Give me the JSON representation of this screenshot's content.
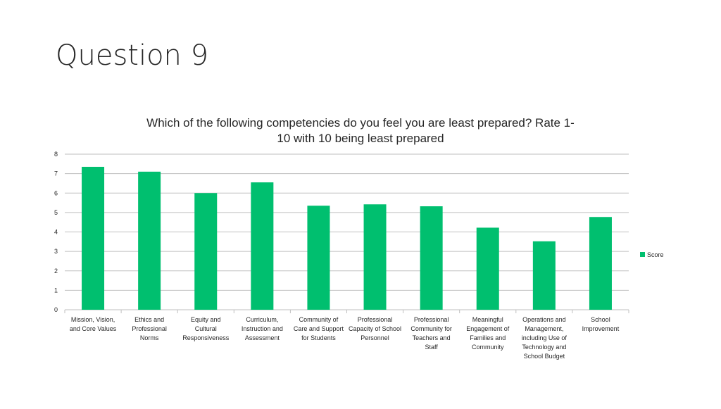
{
  "slide": {
    "title": "Question 9"
  },
  "colors": {
    "bar": "#00BF6F",
    "grid": "#BFBFBF",
    "axis_text": "#262626"
  },
  "chart_data": {
    "type": "bar",
    "title_lines": [
      "Which of the following competencies do you feel you are least prepared?  Rate 1-",
      "10 with 10 being least prepared"
    ],
    "categories": [
      [
        "Mission, Vision,",
        "and Core Values"
      ],
      [
        "Ethics and",
        "Professional",
        "Norms"
      ],
      [
        "Equity and",
        "Cultural",
        "Responsiveness"
      ],
      [
        "Curriculum,",
        "Instruction and",
        "Assessment"
      ],
      [
        "Community of",
        "Care and Support",
        "for Students"
      ],
      [
        "Professional",
        "Capacity of School",
        "Personnel"
      ],
      [
        "Professional",
        "Community for",
        "Teachers and",
        "Staff"
      ],
      [
        "Meaningful",
        "Engagement of",
        "Families and",
        "Community"
      ],
      [
        "Operations and",
        "Management,",
        "including Use of",
        "Technology and",
        "School Budget"
      ],
      [
        "School",
        "Improvement"
      ]
    ],
    "series": [
      {
        "name": "Score",
        "values": [
          7.35,
          7.1,
          6.0,
          6.55,
          5.35,
          5.42,
          5.32,
          4.22,
          3.52,
          4.77
        ]
      }
    ],
    "ylim": [
      0,
      8
    ],
    "yticks": [
      0,
      1,
      2,
      3,
      4,
      5,
      6,
      7,
      8
    ],
    "grid": true,
    "legend": "right"
  }
}
